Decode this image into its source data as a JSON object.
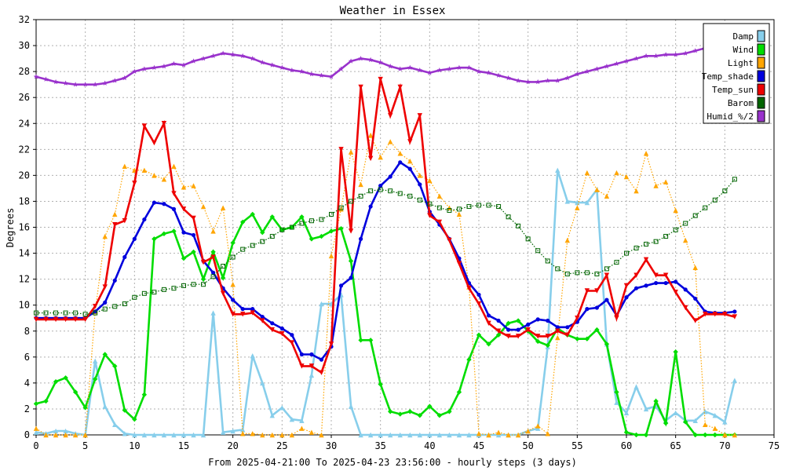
{
  "chart_data": {
    "type": "line",
    "title": "Weather in Essex",
    "xlabel": "From 2025-04-21:00 To 2025-04-23 23:56:00 - hourly steps (3 days)",
    "ylabel": "Degrees",
    "xlim": [
      0,
      75
    ],
    "ylim": [
      0,
      32
    ],
    "x_ticks": [
      0,
      5,
      10,
      15,
      20,
      25,
      30,
      35,
      40,
      45,
      50,
      55,
      60,
      65,
      70,
      75
    ],
    "y_ticks": [
      0,
      2,
      4,
      6,
      8,
      10,
      12,
      14,
      16,
      18,
      20,
      22,
      24,
      26,
      28,
      30,
      32
    ],
    "grid": true,
    "legend_position": "top-right",
    "series": [
      {
        "name": "Damp",
        "color": "#87ceeb",
        "marker": "triangle",
        "style": "solid",
        "x": [
          0,
          1,
          2,
          3,
          4,
          5,
          6,
          7,
          8,
          9,
          10,
          11,
          12,
          13,
          14,
          15,
          16,
          17,
          18,
          19,
          20,
          21,
          22,
          23,
          24,
          25,
          26,
          27,
          28,
          29,
          30,
          31,
          32,
          33,
          34,
          35,
          36,
          37,
          38,
          39,
          40,
          41,
          42,
          43,
          44,
          45,
          46,
          47,
          48,
          49,
          50,
          51,
          52,
          53,
          54,
          55,
          56,
          57,
          58,
          59,
          60,
          61,
          62,
          63,
          64,
          65,
          66,
          67,
          68,
          69,
          70,
          71
        ],
        "values": [
          0.2,
          0.1,
          0.3,
          0.3,
          0.1,
          0.0,
          5.7,
          2.2,
          0.8,
          0.1,
          0,
          0,
          0,
          0,
          0,
          0,
          0,
          0,
          9.4,
          0.2,
          0.3,
          0.4,
          6.1,
          4.0,
          1.5,
          2.1,
          1.2,
          1.1,
          4.6,
          10.1,
          10.1,
          10.8,
          2.2,
          0,
          0,
          0,
          0,
          0,
          0,
          0,
          0,
          0,
          0,
          0,
          0,
          0,
          0,
          0,
          0,
          0,
          0.3,
          0.5,
          6.8,
          20.4,
          18.0,
          17.9,
          17.9,
          18.9,
          7.0,
          2.5,
          1.7,
          3.7,
          2.0,
          2.2,
          1.1,
          1.7,
          1.1,
          1.1,
          1.8,
          1.5,
          1.0,
          4.2
        ]
      },
      {
        "name": "Wind",
        "color": "#00dd00",
        "marker": "diamond",
        "style": "solid",
        "x": [
          0,
          1,
          2,
          3,
          4,
          5,
          6,
          7,
          8,
          9,
          10,
          11,
          12,
          13,
          14,
          15,
          16,
          17,
          18,
          19,
          20,
          21,
          22,
          23,
          24,
          25,
          26,
          27,
          28,
          29,
          30,
          31,
          32,
          33,
          34,
          35,
          36,
          37,
          38,
          39,
          40,
          41,
          42,
          43,
          44,
          45,
          46,
          47,
          48,
          49,
          50,
          51,
          52,
          53,
          54,
          55,
          56,
          57,
          58,
          59,
          60,
          61,
          62,
          63,
          64,
          65,
          66,
          67,
          68,
          69,
          70,
          71
        ],
        "values": [
          2.4,
          2.6,
          4.1,
          4.4,
          3.3,
          2.1,
          4.3,
          6.2,
          5.3,
          1.9,
          1.2,
          3.1,
          15.1,
          15.5,
          15.7,
          13.6,
          14.1,
          12.0,
          14.1,
          12.1,
          14.8,
          16.4,
          17.0,
          15.6,
          16.8,
          15.8,
          16.0,
          16.8,
          15.1,
          15.3,
          15.7,
          15.9,
          13.4,
          7.3,
          7.3,
          3.9,
          1.8,
          1.6,
          1.8,
          1.5,
          2.2,
          1.5,
          1.8,
          3.3,
          5.8,
          7.7,
          7.0,
          7.7,
          8.6,
          8.8,
          8.0,
          7.2,
          6.9,
          8.2,
          7.7,
          7.4,
          7.4,
          8.1,
          7.0,
          3.3,
          0.2,
          0.0,
          0.0,
          2.6,
          0.9,
          6.4,
          1.0,
          0.0,
          0.0,
          0.0,
          0.0,
          0.0
        ]
      },
      {
        "name": "Light",
        "color": "#ffa500",
        "marker": "triangle",
        "style": "dotted",
        "x": [
          0,
          1,
          2,
          3,
          4,
          5,
          6,
          7,
          8,
          9,
          10,
          11,
          12,
          13,
          14,
          15,
          16,
          17,
          18,
          19,
          20,
          21,
          22,
          23,
          24,
          25,
          26,
          27,
          28,
          29,
          30,
          31,
          32,
          33,
          34,
          35,
          36,
          37,
          38,
          39,
          40,
          41,
          42,
          43,
          44,
          45,
          46,
          47,
          48,
          49,
          50,
          51,
          52,
          53,
          54,
          55,
          56,
          57,
          58,
          59,
          60,
          61,
          62,
          63,
          64,
          65,
          66,
          67,
          68,
          69,
          70,
          71
        ],
        "values": [
          0.5,
          0.0,
          0.0,
          0.0,
          0.0,
          0.0,
          9.5,
          15.3,
          17.0,
          20.7,
          20.4,
          20.4,
          20.0,
          19.7,
          20.7,
          19.1,
          19.2,
          17.6,
          15.7,
          17.5,
          11.6,
          0.1,
          0.1,
          0.0,
          0.0,
          0.0,
          0.0,
          0.5,
          0.2,
          0.0,
          13.8,
          17.4,
          21.8,
          19.3,
          23.1,
          21.4,
          22.6,
          21.7,
          21.1,
          20.0,
          19.6,
          18.4,
          17.5,
          17.0,
          11.4,
          0.1,
          0.0,
          0.2,
          0.0,
          0.0,
          0.3,
          0.7,
          0.1,
          7.5,
          15.0,
          17.5,
          20.2,
          18.9,
          18.4,
          20.2,
          19.9,
          18.8,
          21.7,
          19.2,
          19.5,
          17.3,
          15.0,
          12.9,
          0.8,
          0.5,
          0.0,
          0.0
        ]
      },
      {
        "name": "Temp_shade",
        "color": "#0000dd",
        "marker": "circle",
        "style": "solid",
        "x": [
          0,
          1,
          2,
          3,
          4,
          5,
          6,
          7,
          8,
          9,
          10,
          11,
          12,
          13,
          14,
          15,
          16,
          17,
          18,
          19,
          20,
          21,
          22,
          23,
          24,
          25,
          26,
          27,
          28,
          29,
          30,
          31,
          32,
          33,
          34,
          35,
          36,
          37,
          38,
          39,
          40,
          41,
          42,
          43,
          44,
          45,
          46,
          47,
          48,
          49,
          50,
          51,
          52,
          53,
          54,
          55,
          56,
          57,
          58,
          59,
          60,
          61,
          62,
          63,
          64,
          65,
          66,
          67,
          68,
          69,
          70,
          71
        ],
        "values": [
          9.0,
          9.0,
          9.0,
          9.0,
          9.0,
          9.0,
          9.5,
          10.2,
          11.9,
          13.7,
          15.1,
          16.6,
          17.9,
          17.8,
          17.4,
          15.6,
          15.4,
          13.4,
          12.5,
          11.3,
          10.4,
          9.7,
          9.7,
          9.1,
          8.6,
          8.2,
          7.7,
          6.2,
          6.2,
          5.8,
          6.8,
          11.5,
          12.1,
          15.1,
          17.6,
          19.2,
          19.9,
          21.0,
          20.5,
          19.3,
          17.2,
          16.2,
          15.1,
          13.6,
          11.7,
          10.8,
          9.2,
          8.8,
          8.1,
          8.1,
          8.5,
          8.9,
          8.8,
          8.3,
          8.3,
          8.7,
          9.7,
          9.8,
          10.4,
          9.2,
          10.6,
          11.3,
          11.5,
          11.7,
          11.7,
          11.8,
          11.2,
          10.5,
          9.5,
          9.4,
          9.4,
          9.5
        ]
      },
      {
        "name": "Temp_sun",
        "color": "#ee0000",
        "marker": "triangle-down",
        "style": "solid",
        "x": [
          0,
          1,
          2,
          3,
          4,
          5,
          6,
          7,
          8,
          9,
          10,
          11,
          12,
          13,
          14,
          15,
          16,
          17,
          18,
          19,
          20,
          21,
          22,
          23,
          24,
          25,
          26,
          27,
          28,
          29,
          30,
          31,
          32,
          33,
          34,
          35,
          36,
          37,
          38,
          39,
          40,
          41,
          42,
          43,
          44,
          45,
          46,
          47,
          48,
          49,
          50,
          51,
          52,
          53,
          54,
          55,
          56,
          57,
          58,
          59,
          60,
          61,
          62,
          63,
          64,
          65,
          66,
          67,
          68,
          69,
          70,
          71
        ],
        "values": [
          8.9,
          8.9,
          8.9,
          8.9,
          8.9,
          8.9,
          9.9,
          11.4,
          16.2,
          16.5,
          19.4,
          23.8,
          22.5,
          24.0,
          18.6,
          17.4,
          16.7,
          13.3,
          13.7,
          10.9,
          9.3,
          9.3,
          9.4,
          8.8,
          8.1,
          7.8,
          7.1,
          5.3,
          5.3,
          4.8,
          7.0,
          22.0,
          15.7,
          26.8,
          21.3,
          27.4,
          24.6,
          26.8,
          22.6,
          24.6,
          16.9,
          16.4,
          15.0,
          13.2,
          11.3,
          10.1,
          8.6,
          8.0,
          7.6,
          7.6,
          8.1,
          7.6,
          7.6,
          8.0,
          7.7,
          9.0,
          11.1,
          11.1,
          12.3,
          9.0,
          11.5,
          12.3,
          13.5,
          12.3,
          12.3,
          11.0,
          9.8,
          8.8,
          9.3,
          9.3,
          9.3,
          9.1
        ]
      },
      {
        "name": "Barom",
        "color": "#006400",
        "marker": "square",
        "style": "dotted",
        "x": [
          0,
          1,
          2,
          3,
          4,
          5,
          6,
          7,
          8,
          9,
          10,
          11,
          12,
          13,
          14,
          15,
          16,
          17,
          18,
          19,
          20,
          21,
          22,
          23,
          24,
          25,
          26,
          27,
          28,
          29,
          30,
          31,
          32,
          33,
          34,
          35,
          36,
          37,
          38,
          39,
          40,
          41,
          42,
          43,
          44,
          45,
          46,
          47,
          48,
          49,
          50,
          51,
          52,
          53,
          54,
          55,
          56,
          57,
          58,
          59,
          60,
          61,
          62,
          63,
          64,
          65,
          66,
          67,
          68,
          69,
          70,
          71
        ],
        "values": [
          9.4,
          9.4,
          9.4,
          9.4,
          9.4,
          9.3,
          9.4,
          9.7,
          9.9,
          10.1,
          10.6,
          10.9,
          11.0,
          11.2,
          11.3,
          11.5,
          11.6,
          11.6,
          12.2,
          13.0,
          13.7,
          14.3,
          14.6,
          14.9,
          15.3,
          15.8,
          16.0,
          16.3,
          16.5,
          16.6,
          17.0,
          17.5,
          18.0,
          18.4,
          18.8,
          18.9,
          18.8,
          18.6,
          18.4,
          18.1,
          17.8,
          17.5,
          17.3,
          17.4,
          17.6,
          17.7,
          17.7,
          17.6,
          16.8,
          16.1,
          15.1,
          14.2,
          13.4,
          12.8,
          12.4,
          12.5,
          12.5,
          12.4,
          12.8,
          13.3,
          14.0,
          14.4,
          14.7,
          14.9,
          15.3,
          15.8,
          16.3,
          16.9,
          17.5,
          18.1,
          18.8,
          19.7
        ]
      },
      {
        "name": "Humid_%/2",
        "color": "#9932cc",
        "marker": "star",
        "style": "solid",
        "x": [
          0,
          1,
          2,
          3,
          4,
          5,
          6,
          7,
          8,
          9,
          10,
          11,
          12,
          13,
          14,
          15,
          16,
          17,
          18,
          19,
          20,
          21,
          22,
          23,
          24,
          25,
          26,
          27,
          28,
          29,
          30,
          31,
          32,
          33,
          34,
          35,
          36,
          37,
          38,
          39,
          40,
          41,
          42,
          43,
          44,
          45,
          46,
          47,
          48,
          49,
          50,
          51,
          52,
          53,
          54,
          55,
          56,
          57,
          58,
          59,
          60,
          61,
          62,
          63,
          64,
          65,
          66,
          67,
          68,
          69,
          70,
          71
        ],
        "values": [
          27.6,
          27.4,
          27.2,
          27.1,
          27.0,
          27.0,
          27.0,
          27.1,
          27.3,
          27.5,
          28.0,
          28.2,
          28.3,
          28.4,
          28.6,
          28.5,
          28.8,
          29.0,
          29.2,
          29.4,
          29.3,
          29.2,
          29.0,
          28.7,
          28.5,
          28.3,
          28.1,
          28.0,
          27.8,
          27.7,
          27.6,
          28.2,
          28.8,
          29.0,
          28.9,
          28.7,
          28.4,
          28.2,
          28.3,
          28.1,
          27.9,
          28.1,
          28.2,
          28.3,
          28.3,
          28.0,
          27.9,
          27.7,
          27.5,
          27.3,
          27.2,
          27.2,
          27.3,
          27.3,
          27.5,
          27.8,
          28.0,
          28.2,
          28.4,
          28.6,
          28.8,
          29.0,
          29.2,
          29.2,
          29.3,
          29.3,
          29.4,
          29.6,
          29.8,
          29.9,
          30.0,
          30.0
        ]
      }
    ]
  }
}
